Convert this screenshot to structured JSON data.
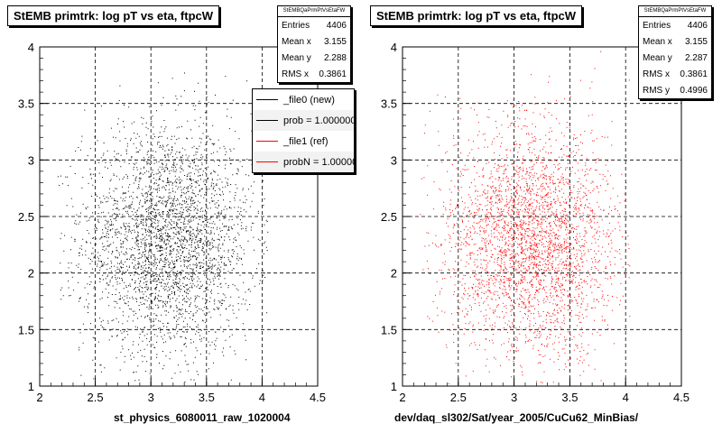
{
  "colors": {
    "file0": "#000000",
    "file1": "#ff0000"
  },
  "legend": {
    "entries": [
      {
        "label": "_file0 (new)",
        "color": "#000000"
      },
      {
        "label": "prob = 1.000000",
        "color": "#000000"
      },
      {
        "label": "_file1 (ref)",
        "color": "#ff0000"
      },
      {
        "label": "probN = 1.000000",
        "color": "#ff0000"
      }
    ]
  },
  "chart_data": [
    {
      "type": "scatter",
      "title": "StEMB primtrk: log pT vs eta, ftpcW",
      "xlabel": "st_physics_6080011_raw_1020004",
      "ylabel": "",
      "xlim": [
        2,
        4.5
      ],
      "ylim": [
        1,
        4
      ],
      "xticks": [
        "2",
        "2.5",
        "3",
        "3.5",
        "4",
        "4.5"
      ],
      "yticks": [
        "1",
        "1.5",
        "2",
        "2.5",
        "3",
        "3.5",
        "4"
      ],
      "grid": true,
      "color": "#000000",
      "stats": {
        "name": "StEMBQaPrmPtVsEtaFW",
        "rows": [
          {
            "label": "Entries",
            "value": "4406"
          },
          {
            "label": "Mean x",
            "value": "3.155"
          },
          {
            "label": "Mean y",
            "value": "2.288"
          },
          {
            "label": "RMS x",
            "value": "0.3861"
          }
        ]
      },
      "distribution": {
        "entries": 4406,
        "mean_x": 3.155,
        "mean_y": 2.288,
        "rms_x": 0.3861,
        "rms_y": 0.4996
      }
    },
    {
      "type": "scatter",
      "title": "StEMB primtrk: log pT vs eta, ftpcW",
      "xlabel": "dev/daq_sl302/Sat/year_2005/CuCu62_MinBias/",
      "ylabel": "",
      "xlim": [
        2,
        4.5
      ],
      "ylim": [
        1,
        4
      ],
      "xticks": [
        "2",
        "2.5",
        "3",
        "3.5",
        "4",
        "4.5"
      ],
      "yticks": [
        "1",
        "1.5",
        "2",
        "2.5",
        "3",
        "3.5",
        "4"
      ],
      "grid": true,
      "color": "#ff0000",
      "stats": {
        "name": "StEMBQaPrmPtVsEtaFW",
        "rows": [
          {
            "label": "Entries",
            "value": "4406"
          },
          {
            "label": "Mean x",
            "value": "3.155"
          },
          {
            "label": "Mean y",
            "value": "2.287"
          },
          {
            "label": "RMS x",
            "value": "0.3861"
          },
          {
            "label": "RMS y",
            "value": "0.4996"
          }
        ]
      },
      "distribution": {
        "entries": 4406,
        "mean_x": 3.155,
        "mean_y": 2.287,
        "rms_x": 0.3861,
        "rms_y": 0.4996
      }
    }
  ]
}
